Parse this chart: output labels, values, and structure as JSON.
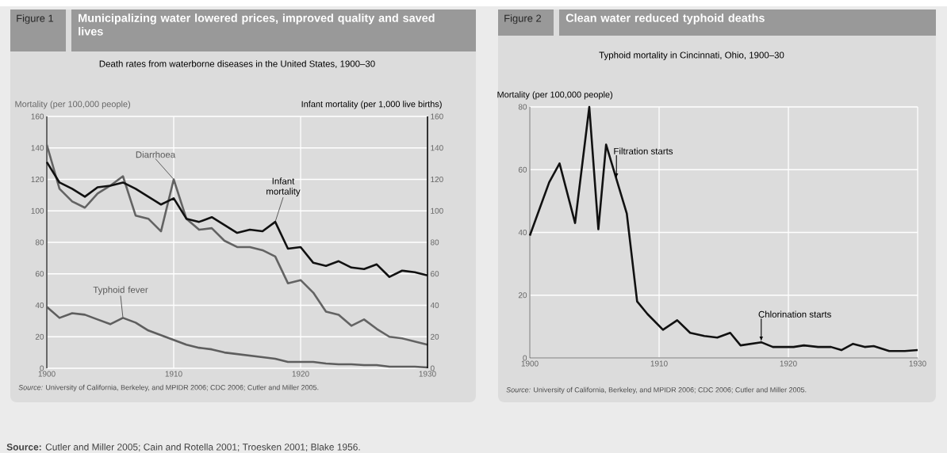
{
  "chart_data": [
    {
      "type": "line",
      "title": "Municipalizing water lowered prices, improved quality and saved lives",
      "subtitle": "Death rates from waterborne diseases in the United States, 1900–30",
      "ylabel": "Mortality (per 100,000 people)",
      "y2label": "Infant mortality (per 1,000 live births)",
      "x": [
        1900,
        1901,
        1902,
        1903,
        1904,
        1905,
        1906,
        1907,
        1908,
        1909,
        1910,
        1911,
        1912,
        1913,
        1914,
        1915,
        1916,
        1917,
        1918,
        1919,
        1920,
        1921,
        1922,
        1923,
        1924,
        1925,
        1926,
        1927,
        1928,
        1929,
        1930
      ],
      "series": [
        {
          "color": "#5e5e5e",
          "values": [
            39,
            32,
            35,
            34,
            31,
            28,
            32,
            29,
            24,
            21,
            18,
            15,
            13,
            12,
            10,
            9,
            8,
            7,
            6,
            4,
            4,
            4,
            3,
            2.5,
            2.5,
            2,
            2,
            1,
            1,
            1,
            0.5
          ]
        },
        {
          "color": "#636363",
          "values": [
            142,
            114,
            106,
            102,
            111,
            116,
            122,
            97,
            95,
            87,
            120,
            95,
            88,
            89,
            81,
            77,
            77,
            75,
            71,
            54,
            56,
            48,
            36,
            34,
            27,
            31,
            25,
            20,
            19,
            17,
            15
          ]
        },
        {
          "color": "#111111",
          "axis": "y2",
          "values": [
            131,
            118,
            114,
            109,
            115,
            116,
            118,
            114,
            109,
            104,
            108,
            95,
            93,
            96,
            91,
            86,
            88,
            87,
            93,
            76,
            77,
            67,
            65,
            68,
            64,
            63,
            66,
            58,
            62,
            61,
            59
          ]
        }
      ],
      "xlim": [
        1900,
        1930
      ],
      "xticks": [
        1900,
        1910,
        1920,
        1930
      ],
      "ylim": [
        0,
        160
      ],
      "yticks": [
        0,
        20,
        40,
        60,
        80,
        100,
        120,
        140,
        160
      ],
      "y2lim": [
        0,
        160
      ],
      "y2ticks": [
        0,
        20,
        40,
        60,
        80,
        100,
        120,
        140,
        160
      ],
      "grid": true,
      "annotations": [
        "Figure 1",
        "*Source:* University of California, Berkeley, and MPIDR 2006; CDC 2006; Cutler and Miller 2005.",
        "**Source:** Cutler and Miller 2005; Cain and Rotella 2001; Troesken 2001; Blake 1956.",
        {
          "text": "Diarrhoea",
          "x": 1910,
          "y": 120
        },
        {
          "text": "Infant mortality",
          "x": 1918,
          "y": 93
        },
        {
          "text": "Typhoid fever",
          "x": 1906,
          "y": 32
        }
      ]
    },
    {
      "type": "line",
      "title": "Clean water reduced typhoid deaths",
      "subtitle": "Typhoid mortality in Cincinnati, Ohio, 1900–30",
      "ylabel": "Mortality (per 100,000 people)",
      "series": [
        {
          "color": "#111111",
          "x": [
            1900,
            1901.5,
            1902.3,
            1903.5,
            1904.6,
            1905.3,
            1905.9,
            1907.5,
            1908.3,
            1909.1,
            1910.3,
            1911.4,
            1912.4,
            1913.5,
            1914.5,
            1915.5,
            1916.3,
            1917.9,
            1918.8,
            1920.4,
            1921.2,
            1922.3,
            1923.3,
            1924.1,
            1925,
            1925.9,
            1926.6,
            1927.8,
            1929,
            1930
          ],
          "values": [
            39,
            56,
            62,
            43,
            80,
            41,
            68,
            46,
            18,
            14,
            9,
            12,
            8,
            7,
            6.5,
            8,
            4,
            5,
            3.5,
            3.5,
            4,
            3.5,
            3.5,
            2.5,
            4.5,
            3.5,
            3.8,
            2.2,
            2.2,
            2.5
          ]
        }
      ],
      "xlim": [
        1900,
        1930
      ],
      "xticks": [
        1900,
        1910,
        1920,
        1930
      ],
      "ylim": [
        0,
        80
      ],
      "yticks": [
        0,
        20,
        40,
        60,
        80
      ],
      "grid": true,
      "annotations": [
        "Figure 2",
        "*Source:* University of California, Berkeley, and MPIDR 2006; CDC 2006; Cutler and Miller 2005.",
        {
          "text": "Filtration starts",
          "x": 1906.7,
          "y": 57
        },
        {
          "text": "Chlorination starts",
          "x": 1917.9,
          "y": 5
        }
      ]
    }
  ]
}
